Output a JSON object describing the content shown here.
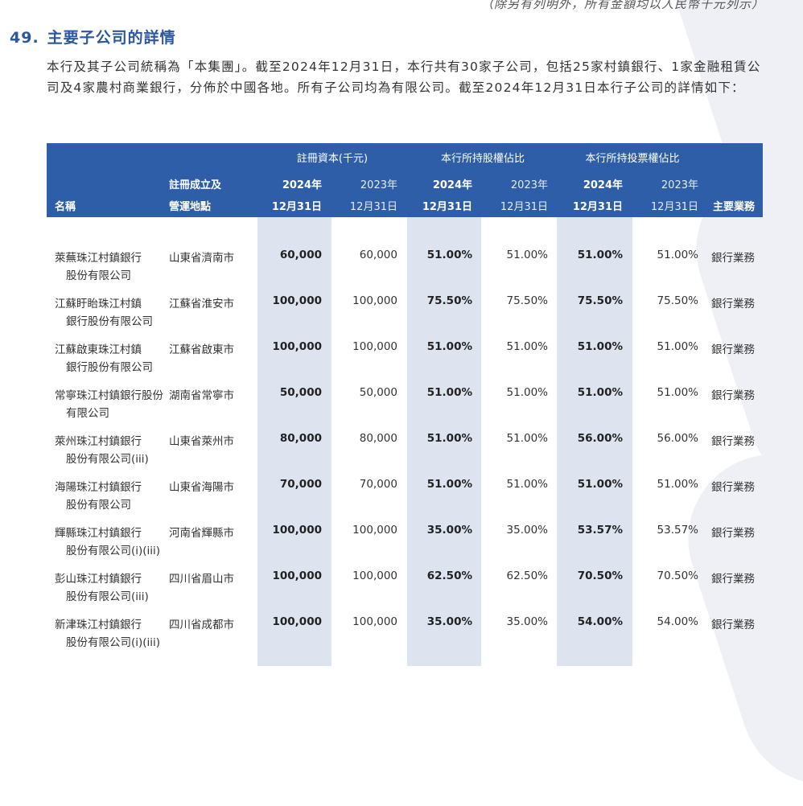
{
  "note": "（除另有列明外，所有金額均以人民幣千元列示）",
  "section": {
    "number": "49.",
    "title": "主要子公司的詳情",
    "paragraph": "本行及其子公司統稱為「本集團」。截至2024年12月31日，本行共有30家子公司，包括25家村鎮銀行、1家金融租賃公司及4家農村商業銀行，分佈於中國各地。所有子公司均為有限公司。截至2024年12月31日本行子公司的詳情如下："
  },
  "table": {
    "headers": {
      "name": "名稱",
      "place_line1": "註冊成立及",
      "place_line2": "營運地點",
      "reg_capital": "註冊資本(千元)",
      "equity_ratio": "本行所持股權佔比",
      "voting_ratio": "本行所持投票權佔比",
      "year_2024": "2024年",
      "year_2023": "2023年",
      "date": "12月31日",
      "business": "主要業務"
    },
    "rows": [
      {
        "name1": "萊蕪珠江村鎮銀行",
        "name2": "股份有限公司",
        "place": "山東省濟南市",
        "cap2024": "60,000",
        "cap2023": "60,000",
        "eq2024": "51.00%",
        "eq2023": "51.00%",
        "vote2024": "51.00%",
        "vote2023": "51.00%",
        "business": "銀行業務"
      },
      {
        "name1": "江蘇盱眙珠江村鎮",
        "name2": "銀行股份有限公司",
        "place": "江蘇省淮安市",
        "cap2024": "100,000",
        "cap2023": "100,000",
        "eq2024": "75.50%",
        "eq2023": "75.50%",
        "vote2024": "75.50%",
        "vote2023": "75.50%",
        "business": "銀行業務"
      },
      {
        "name1": "江蘇啟東珠江村鎮",
        "name2": "銀行股份有限公司",
        "place": "江蘇省啟東市",
        "cap2024": "100,000",
        "cap2023": "100,000",
        "eq2024": "51.00%",
        "eq2023": "51.00%",
        "vote2024": "51.00%",
        "vote2023": "51.00%",
        "business": "銀行業務"
      },
      {
        "name1": "常寧珠江村鎮銀行股份",
        "name2": "有限公司",
        "place": "湖南省常寧市",
        "cap2024": "50,000",
        "cap2023": "50,000",
        "eq2024": "51.00%",
        "eq2023": "51.00%",
        "vote2024": "51.00%",
        "vote2023": "51.00%",
        "business": "銀行業務"
      },
      {
        "name1": "萊州珠江村鎮銀行",
        "name2": "股份有限公司(iii)",
        "place": "山東省萊州市",
        "cap2024": "80,000",
        "cap2023": "80,000",
        "eq2024": "51.00%",
        "eq2023": "51.00%",
        "vote2024": "56.00%",
        "vote2023": "56.00%",
        "business": "銀行業務"
      },
      {
        "name1": "海陽珠江村鎮銀行",
        "name2": "股份有限公司",
        "place": "山東省海陽市",
        "cap2024": "70,000",
        "cap2023": "70,000",
        "eq2024": "51.00%",
        "eq2023": "51.00%",
        "vote2024": "51.00%",
        "vote2023": "51.00%",
        "business": "銀行業務"
      },
      {
        "name1": "輝縣珠江村鎮銀行",
        "name2": "股份有限公司(i)(iii)",
        "place": "河南省輝縣市",
        "cap2024": "100,000",
        "cap2023": "100,000",
        "eq2024": "35.00%",
        "eq2023": "35.00%",
        "vote2024": "53.57%",
        "vote2023": "53.57%",
        "business": "銀行業務"
      },
      {
        "name1": "彭山珠江村鎮銀行",
        "name2": "股份有限公司(iii)",
        "place": "四川省眉山市",
        "cap2024": "100,000",
        "cap2023": "100,000",
        "eq2024": "62.50%",
        "eq2023": "62.50%",
        "vote2024": "70.50%",
        "vote2023": "70.50%",
        "business": "銀行業務"
      },
      {
        "name1": "新津珠江村鎮銀行",
        "name2": "股份有限公司(i)(iii)",
        "place": "四川省成都市",
        "cap2024": "100,000",
        "cap2023": "100,000",
        "eq2024": "35.00%",
        "eq2023": "35.00%",
        "vote2024": "54.00%",
        "vote2023": "54.00%",
        "business": "銀行業務"
      }
    ]
  }
}
